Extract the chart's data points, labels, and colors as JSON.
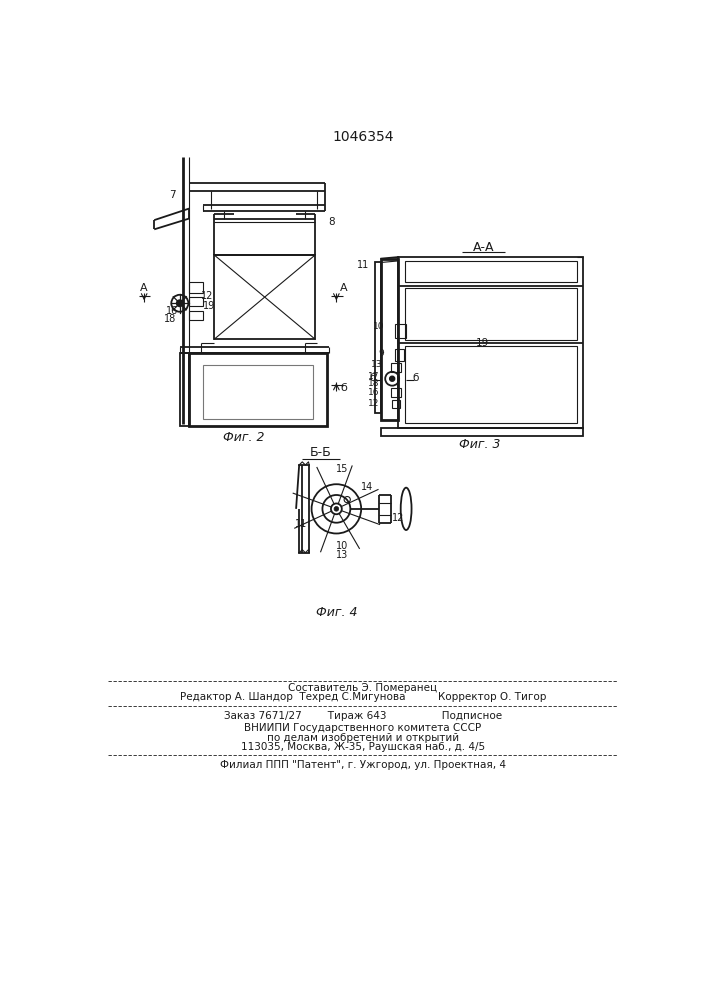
{
  "patent_number": "1046354",
  "bg_color": "#ffffff",
  "line_color": "#1a1a1a",
  "footer_lines": [
    "Составитель Э. Померанец",
    "Редактор А. Шандор  Техред С.Мигунова          Корректор О. Тигор",
    "Заказ 7671/27        Тираж 643                 Подписное",
    "ВНИИПИ Государственного комитета СССР",
    "по делам изобретений и открытий",
    "113035, Москва, Ж-35, Раушская наб., д. 4/5",
    "Филиал ППП \"Патент\", г. Ужгород, ул. Проектная, 4"
  ],
  "fig2_caption": "Фиг. 2",
  "fig3_caption": "Фиг. 3",
  "fig4_caption": "Фиг. 4",
  "section_AA": "А-А",
  "section_BB": "Б-Б"
}
